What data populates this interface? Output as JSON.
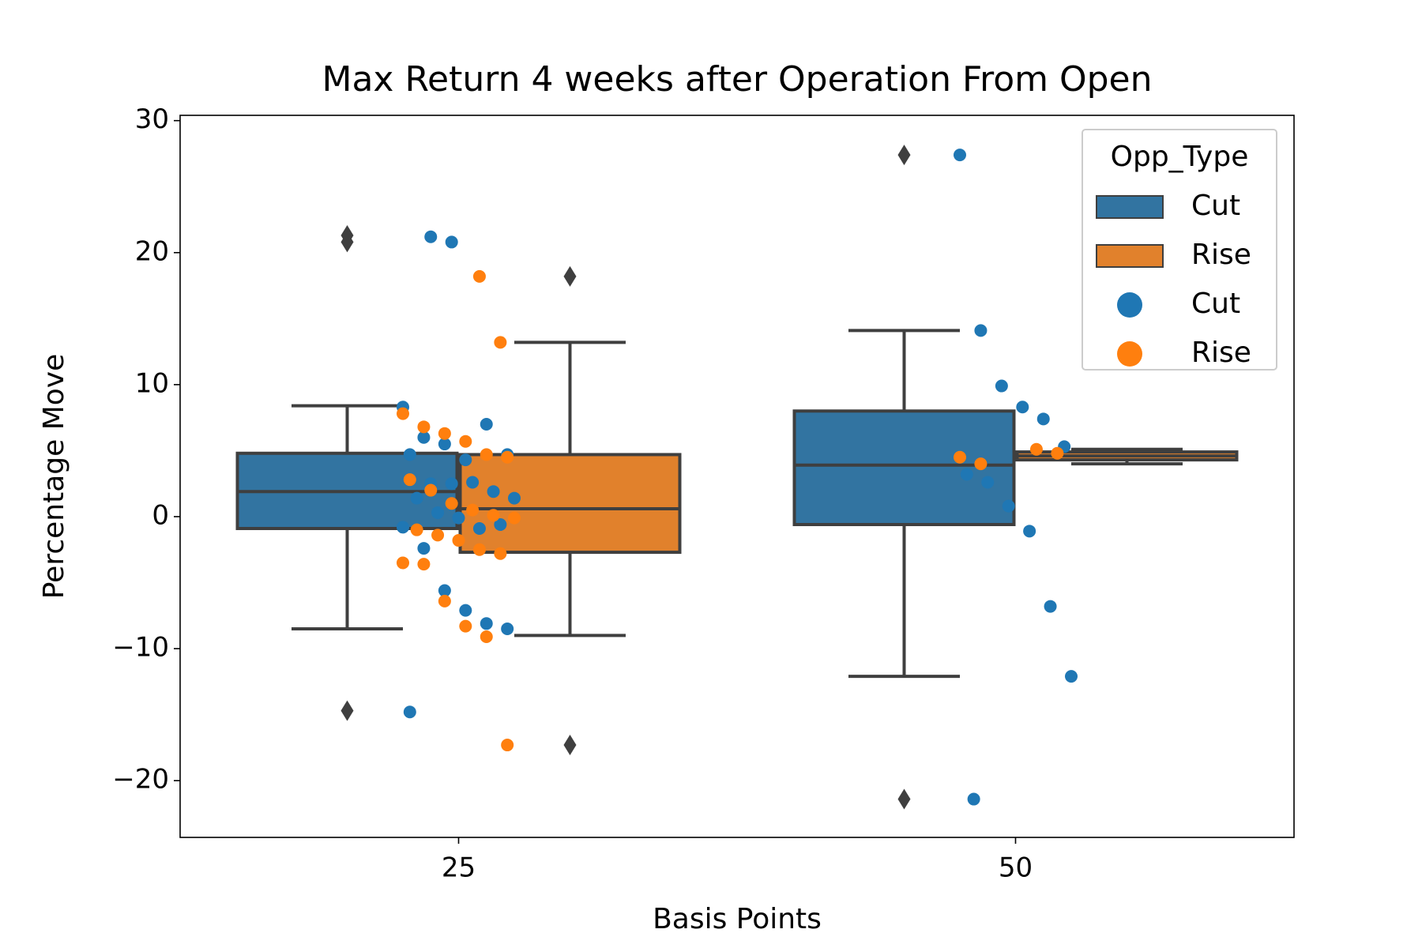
{
  "chart_data": {
    "type": "box",
    "title": "Max Return 4 weeks after Operation From Open",
    "x_label": "Basis Points",
    "y_label": "Percentage Move",
    "categories": [
      "25",
      "50"
    ],
    "ylim": [
      -24.3,
      30.4
    ],
    "yticks": [
      {
        "value": -20,
        "label": "−20"
      },
      {
        "value": -10,
        "label": "−10"
      },
      0,
      10,
      20,
      30
    ],
    "legend": "upper right",
    "legend_title": "Opp_Type",
    "series": [
      {
        "name": "Cut",
        "color": "#3274a1",
        "boxes": [
          {
            "whislo": -8.5,
            "q1": -0.9,
            "med": 1.9,
            "q3": 4.8,
            "whishi": 8.4,
            "fliers": [
              21.3,
              20.8,
              -14.7
            ]
          },
          {
            "whislo": -12.1,
            "q1": -0.6,
            "med": 3.9,
            "q3": 8.0,
            "whishi": 14.1,
            "fliers": [
              27.4,
              -21.4
            ]
          }
        ]
      },
      {
        "name": "Rise",
        "color": "#e1812c",
        "boxes": [
          {
            "whislo": -9.0,
            "q1": -2.7,
            "med": 0.6,
            "q3": 4.7,
            "whishi": 13.2,
            "fliers": [
              18.2,
              -17.3
            ]
          },
          {
            "whislo": 4.0,
            "q1": 4.3,
            "med": 4.6,
            "q3": 4.9,
            "whishi": 5.1,
            "fliers": []
          }
        ]
      }
    ],
    "strip_series": [
      {
        "name": "Cut",
        "color": "#1f77b4",
        "values": [
          [
            8.3,
            6.0,
            5.5,
            4.3,
            7.0,
            4.7,
            4.7,
            2.5,
            2.5,
            2.6,
            1.9,
            1.4,
            1.4,
            0.3,
            -0.1,
            -0.9,
            -0.6,
            -0.8,
            -2.4,
            -5.6,
            -7.1,
            -8.1,
            -8.5,
            -14.8,
            21.2,
            20.8
          ],
          [
            27.4,
            14.1,
            9.9,
            8.3,
            7.4,
            5.3,
            3.2,
            2.6,
            0.8,
            -1.1,
            -6.8,
            -12.1,
            -21.4
          ]
        ]
      },
      {
        "name": "Rise",
        "color": "#ff7f0e",
        "values": [
          [
            18.2,
            13.2,
            7.8,
            6.8,
            6.3,
            5.7,
            4.7,
            4.5,
            2.8,
            2.0,
            1.0,
            0.5,
            0.1,
            -0.1,
            -1.0,
            -1.4,
            -1.8,
            -2.5,
            -2.8,
            -3.5,
            -3.6,
            -6.4,
            -8.3,
            -9.1,
            -17.3
          ],
          [
            5.1,
            4.8,
            4.5,
            4.0
          ]
        ]
      }
    ]
  }
}
